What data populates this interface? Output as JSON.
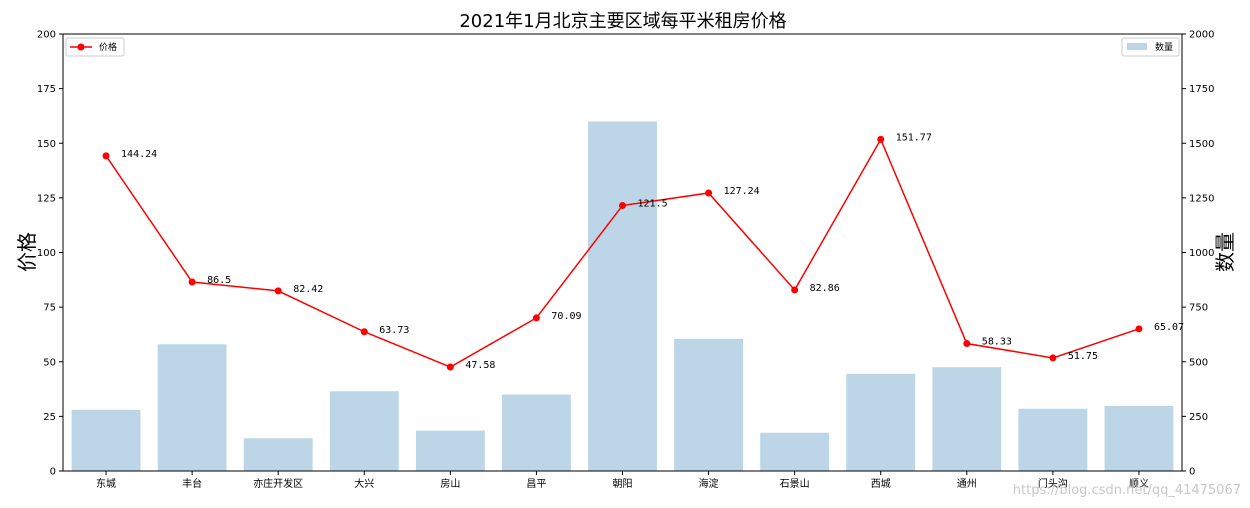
{
  "chart_data": {
    "type": "bar",
    "title": "2021年1月北京主要区域每平米租房价格",
    "ylabel_left": "价格",
    "ylabel_right": "数量",
    "ylim_left": [
      0,
      200
    ],
    "ylim_right": [
      0,
      2000
    ],
    "yticks_left": [
      0,
      25,
      50,
      75,
      100,
      125,
      150,
      175,
      200
    ],
    "yticks_right": [
      0,
      250,
      500,
      750,
      1000,
      1250,
      1500,
      1750,
      2000
    ],
    "grid": false,
    "categories": [
      "东城",
      "丰台",
      "亦庄开发区",
      "大兴",
      "房山",
      "昌平",
      "朝阳",
      "海淀",
      "石景山",
      "西城",
      "通州",
      "门头沟",
      "顺义"
    ],
    "series": [
      {
        "name": "价格",
        "type": "line",
        "axis": "left",
        "color": "#ff0000",
        "marker": "circle",
        "values": [
          144.24,
          86.5,
          82.42,
          63.73,
          47.58,
          70.09,
          121.5,
          127.24,
          82.86,
          151.77,
          58.33,
          51.75,
          65.07
        ],
        "labels": [
          "144.24",
          "86.5",
          "82.42",
          "63.73",
          "47.58",
          "70.09",
          "121.5",
          "127.24",
          "82.86",
          "151.77",
          "58.33",
          "51.75",
          "65.07"
        ]
      },
      {
        "name": "数量",
        "type": "bar",
        "axis": "right",
        "color": "#bcd6e8",
        "values": [
          280,
          580,
          150,
          365,
          185,
          350,
          1600,
          605,
          175,
          445,
          475,
          285,
          298
        ]
      }
    ],
    "legend_left": {
      "placement": "top-left",
      "label": "价格"
    },
    "legend_right": {
      "placement": "top-right",
      "label": "数量"
    }
  },
  "watermark": "https://blog.csdn.net/qq_41475067"
}
